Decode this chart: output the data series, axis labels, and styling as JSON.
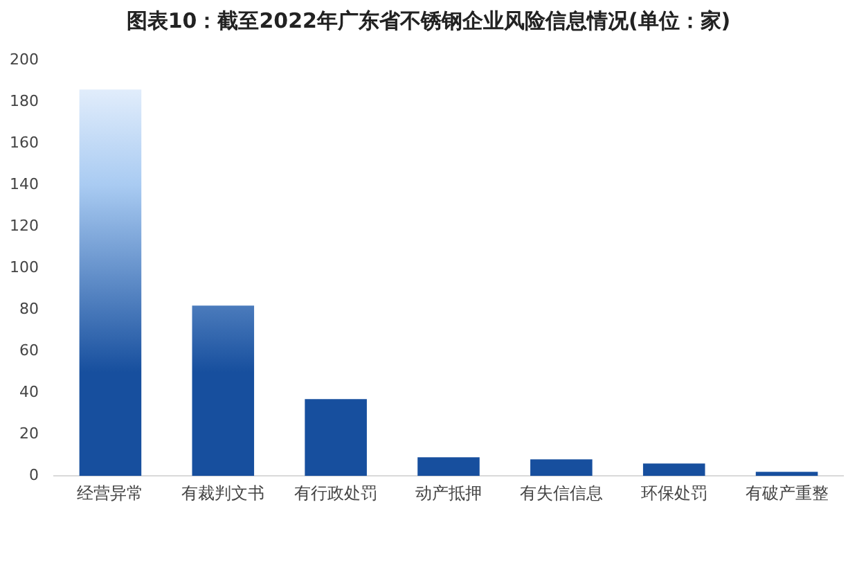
{
  "chart_data": {
    "type": "bar",
    "title": "图表10：截至2022年广东省不锈钢企业风险信息情况(单位：家)",
    "categories": [
      "经营异常",
      "有裁判文书",
      "有行政处罚",
      "动产抵押",
      "有失信信息",
      "环保处罚",
      "有破产重整"
    ],
    "values": [
      186,
      82,
      37,
      9,
      8,
      6,
      2
    ],
    "color": "#174f9e",
    "ylim": [
      0,
      200
    ],
    "yticks": [
      0,
      20,
      40,
      60,
      80,
      100,
      120,
      140,
      160,
      180,
      200
    ],
    "grid": false,
    "legend": false
  }
}
